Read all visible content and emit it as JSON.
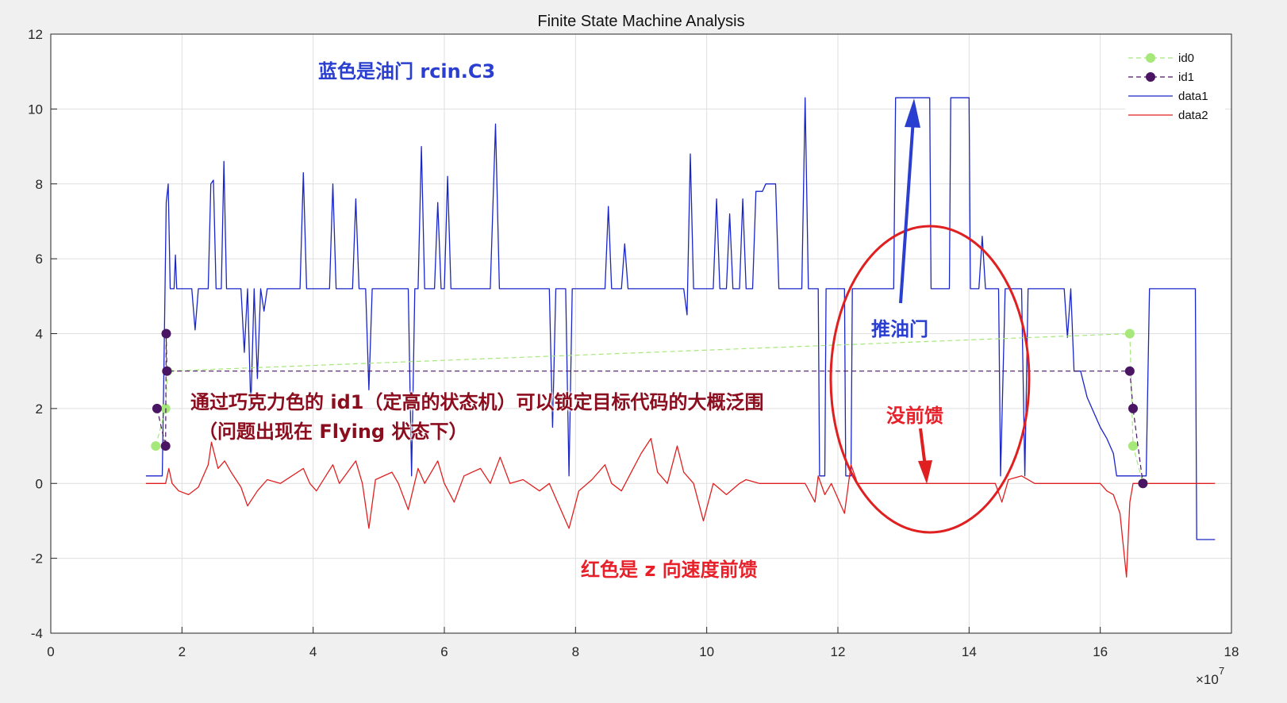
{
  "chart_data": {
    "type": "line",
    "title": "Finite State Machine Analysis",
    "xlim": [
      0,
      18
    ],
    "ylim": [
      -4,
      12
    ],
    "x_exponent_label": "×10",
    "x_exponent_power": "7",
    "xticks": [
      0,
      2,
      4,
      6,
      8,
      10,
      12,
      14,
      16,
      18
    ],
    "yticks": [
      -4,
      -2,
      0,
      2,
      4,
      6,
      8,
      10,
      12
    ],
    "grid": true,
    "legend_position": "top-right",
    "series": [
      {
        "name": "id0",
        "color": "#a6e87a",
        "style": "dashed-marker",
        "points": [
          [
            1.6,
            1
          ],
          [
            1.75,
            2
          ],
          [
            1.78,
            3
          ],
          [
            16.45,
            4
          ],
          [
            16.5,
            1
          ],
          [
            16.65,
            0
          ]
        ]
      },
      {
        "name": "id1",
        "color": "#4a1563",
        "style": "dashed-marker",
        "points": [
          [
            1.62,
            2
          ],
          [
            1.75,
            1
          ],
          [
            1.76,
            4
          ],
          [
            1.77,
            3
          ],
          [
            16.45,
            3
          ],
          [
            16.5,
            2
          ],
          [
            16.65,
            0
          ]
        ]
      },
      {
        "name": "data1",
        "color": "#1a25c8",
        "style": "solid",
        "points": [
          [
            1.45,
            0.2
          ],
          [
            1.7,
            0.2
          ],
          [
            1.72,
            2.5
          ],
          [
            1.76,
            7.5
          ],
          [
            1.79,
            8.0
          ],
          [
            1.82,
            5.2
          ],
          [
            1.88,
            5.2
          ],
          [
            1.9,
            6.1
          ],
          [
            1.92,
            5.2
          ],
          [
            2.15,
            5.2
          ],
          [
            2.2,
            4.1
          ],
          [
            2.25,
            5.2
          ],
          [
            2.4,
            5.2
          ],
          [
            2.44,
            8.0
          ],
          [
            2.48,
            8.1
          ],
          [
            2.52,
            5.2
          ],
          [
            2.6,
            5.2
          ],
          [
            2.64,
            8.6
          ],
          [
            2.68,
            5.2
          ],
          [
            2.9,
            5.2
          ],
          [
            2.95,
            3.5
          ],
          [
            3.0,
            5.2
          ],
          [
            3.05,
            2.0
          ],
          [
            3.1,
            5.2
          ],
          [
            3.15,
            2.8
          ],
          [
            3.2,
            5.2
          ],
          [
            3.25,
            4.6
          ],
          [
            3.3,
            5.2
          ],
          [
            3.8,
            5.2
          ],
          [
            3.85,
            8.3
          ],
          [
            3.9,
            5.2
          ],
          [
            4.25,
            5.2
          ],
          [
            4.3,
            8.0
          ],
          [
            4.35,
            5.2
          ],
          [
            4.6,
            5.2
          ],
          [
            4.65,
            7.6
          ],
          [
            4.7,
            5.2
          ],
          [
            4.8,
            5.2
          ],
          [
            4.85,
            2.5
          ],
          [
            4.9,
            5.2
          ],
          [
            5.45,
            5.2
          ],
          [
            5.5,
            0.2
          ],
          [
            5.55,
            5.2
          ],
          [
            5.6,
            5.2
          ],
          [
            5.65,
            9.0
          ],
          [
            5.7,
            5.2
          ],
          [
            5.85,
            5.2
          ],
          [
            5.9,
            7.5
          ],
          [
            5.95,
            5.2
          ],
          [
            6.0,
            5.2
          ],
          [
            6.05,
            8.2
          ],
          [
            6.1,
            5.2
          ],
          [
            6.7,
            5.2
          ],
          [
            6.78,
            9.6
          ],
          [
            6.84,
            5.2
          ],
          [
            7.6,
            5.2
          ],
          [
            7.65,
            1.5
          ],
          [
            7.7,
            5.2
          ],
          [
            7.85,
            5.2
          ],
          [
            7.9,
            0.2
          ],
          [
            7.95,
            5.2
          ],
          [
            8.45,
            5.2
          ],
          [
            8.5,
            7.4
          ],
          [
            8.55,
            5.2
          ],
          [
            8.7,
            5.2
          ],
          [
            8.75,
            6.4
          ],
          [
            8.8,
            5.2
          ],
          [
            9.65,
            5.2
          ],
          [
            9.7,
            4.5
          ],
          [
            9.75,
            8.8
          ],
          [
            9.8,
            5.2
          ],
          [
            10.1,
            5.2
          ],
          [
            10.15,
            7.6
          ],
          [
            10.2,
            5.2
          ],
          [
            10.3,
            5.2
          ],
          [
            10.35,
            7.2
          ],
          [
            10.4,
            5.2
          ],
          [
            10.5,
            5.2
          ],
          [
            10.55,
            7.6
          ],
          [
            10.6,
            5.2
          ],
          [
            10.7,
            5.2
          ],
          [
            10.75,
            7.8
          ],
          [
            10.85,
            7.8
          ],
          [
            10.9,
            8.0
          ],
          [
            11.05,
            8.0
          ],
          [
            11.1,
            5.2
          ],
          [
            11.45,
            5.2
          ],
          [
            11.5,
            10.3
          ],
          [
            11.55,
            5.2
          ],
          [
            11.7,
            5.2
          ],
          [
            11.72,
            0.2
          ],
          [
            11.8,
            0.2
          ],
          [
            11.82,
            5.2
          ],
          [
            12.1,
            5.2
          ],
          [
            12.12,
            0.2
          ],
          [
            12.2,
            0.2
          ],
          [
            12.22,
            5.2
          ],
          [
            12.85,
            5.2
          ],
          [
            12.88,
            10.3
          ],
          [
            13.4,
            10.3
          ],
          [
            13.42,
            5.2
          ],
          [
            13.7,
            5.2
          ],
          [
            13.72,
            10.3
          ],
          [
            14.0,
            10.3
          ],
          [
            14.02,
            5.2
          ],
          [
            14.15,
            5.2
          ],
          [
            14.2,
            6.6
          ],
          [
            14.25,
            5.2
          ],
          [
            14.45,
            5.2
          ],
          [
            14.48,
            0.2
          ],
          [
            14.55,
            5.2
          ],
          [
            14.8,
            5.2
          ],
          [
            14.85,
            0.2
          ],
          [
            14.9,
            5.2
          ],
          [
            15.45,
            5.2
          ],
          [
            15.5,
            3.9
          ],
          [
            15.55,
            5.2
          ],
          [
            15.6,
            3.0
          ],
          [
            15.7,
            3.0
          ],
          [
            15.8,
            2.3
          ],
          [
            15.9,
            1.9
          ],
          [
            16.0,
            1.5
          ],
          [
            16.1,
            1.2
          ],
          [
            16.2,
            0.8
          ],
          [
            16.25,
            0.2
          ],
          [
            16.7,
            0.2
          ],
          [
            16.75,
            5.2
          ],
          [
            17.45,
            5.2
          ],
          [
            17.47,
            -1.5
          ],
          [
            17.75,
            -1.5
          ]
        ]
      },
      {
        "name": "data2",
        "color": "#e02020",
        "style": "solid",
        "points": [
          [
            1.45,
            0
          ],
          [
            1.75,
            0
          ],
          [
            1.8,
            0.4
          ],
          [
            1.85,
            0
          ],
          [
            1.95,
            -0.2
          ],
          [
            2.1,
            -0.3
          ],
          [
            2.25,
            -0.1
          ],
          [
            2.4,
            0.5
          ],
          [
            2.45,
            1.1
          ],
          [
            2.55,
            0.4
          ],
          [
            2.65,
            0.6
          ],
          [
            2.75,
            0.3
          ],
          [
            2.9,
            -0.1
          ],
          [
            3.0,
            -0.6
          ],
          [
            3.15,
            -0.2
          ],
          [
            3.3,
            0.1
          ],
          [
            3.5,
            0
          ],
          [
            3.85,
            0.4
          ],
          [
            3.95,
            0
          ],
          [
            4.05,
            -0.2
          ],
          [
            4.3,
            0.5
          ],
          [
            4.4,
            0
          ],
          [
            4.65,
            0.6
          ],
          [
            4.75,
            0
          ],
          [
            4.85,
            -1.2
          ],
          [
            4.95,
            0.1
          ],
          [
            5.2,
            0.3
          ],
          [
            5.3,
            0
          ],
          [
            5.45,
            -0.7
          ],
          [
            5.6,
            0.4
          ],
          [
            5.7,
            0
          ],
          [
            5.9,
            0.6
          ],
          [
            6.0,
            0
          ],
          [
            6.15,
            -0.5
          ],
          [
            6.3,
            0.2
          ],
          [
            6.55,
            0.4
          ],
          [
            6.7,
            0
          ],
          [
            6.85,
            0.7
          ],
          [
            7.0,
            0
          ],
          [
            7.2,
            0.1
          ],
          [
            7.45,
            -0.2
          ],
          [
            7.6,
            0
          ],
          [
            7.9,
            -1.2
          ],
          [
            8.05,
            -0.2
          ],
          [
            8.25,
            0.1
          ],
          [
            8.45,
            0.5
          ],
          [
            8.55,
            0
          ],
          [
            8.7,
            -0.2
          ],
          [
            8.85,
            0.3
          ],
          [
            9.0,
            0.8
          ],
          [
            9.15,
            1.2
          ],
          [
            9.25,
            0.3
          ],
          [
            9.4,
            0
          ],
          [
            9.55,
            1.0
          ],
          [
            9.65,
            0.3
          ],
          [
            9.8,
            0
          ],
          [
            9.95,
            -1.0
          ],
          [
            10.1,
            0
          ],
          [
            10.3,
            -0.3
          ],
          [
            10.5,
            0
          ],
          [
            10.6,
            0.1
          ],
          [
            10.8,
            0
          ],
          [
            11.5,
            0
          ],
          [
            11.65,
            -0.5
          ],
          [
            11.7,
            0.2
          ],
          [
            11.8,
            -0.3
          ],
          [
            11.9,
            0
          ],
          [
            12.1,
            -0.8
          ],
          [
            12.2,
            0.5
          ],
          [
            12.3,
            0
          ],
          [
            14.4,
            0
          ],
          [
            14.5,
            -0.5
          ],
          [
            14.6,
            0.1
          ],
          [
            14.8,
            0.2
          ],
          [
            15.0,
            0
          ],
          [
            16.0,
            0
          ],
          [
            16.1,
            -0.2
          ],
          [
            16.2,
            -0.3
          ],
          [
            16.3,
            -0.8
          ],
          [
            16.4,
            -2.5
          ],
          [
            16.45,
            -0.5
          ],
          [
            16.5,
            0
          ],
          [
            17.75,
            0
          ]
        ]
      }
    ],
    "annotations": [
      {
        "text": "蓝色是油门 rcin.C3",
        "color": "blue"
      },
      {
        "text": "推油门",
        "color": "blue"
      },
      {
        "text": "没前馈",
        "color": "red"
      },
      {
        "text": "通过巧克力色的 id1（定高的状态机）可以锁定目标代码的大概泛围",
        "color": "brown"
      },
      {
        "text": "（问题出现在 Flying 状态下）",
        "color": "brown"
      },
      {
        "text": "红色是 z 向速度前馈",
        "color": "red"
      }
    ]
  }
}
